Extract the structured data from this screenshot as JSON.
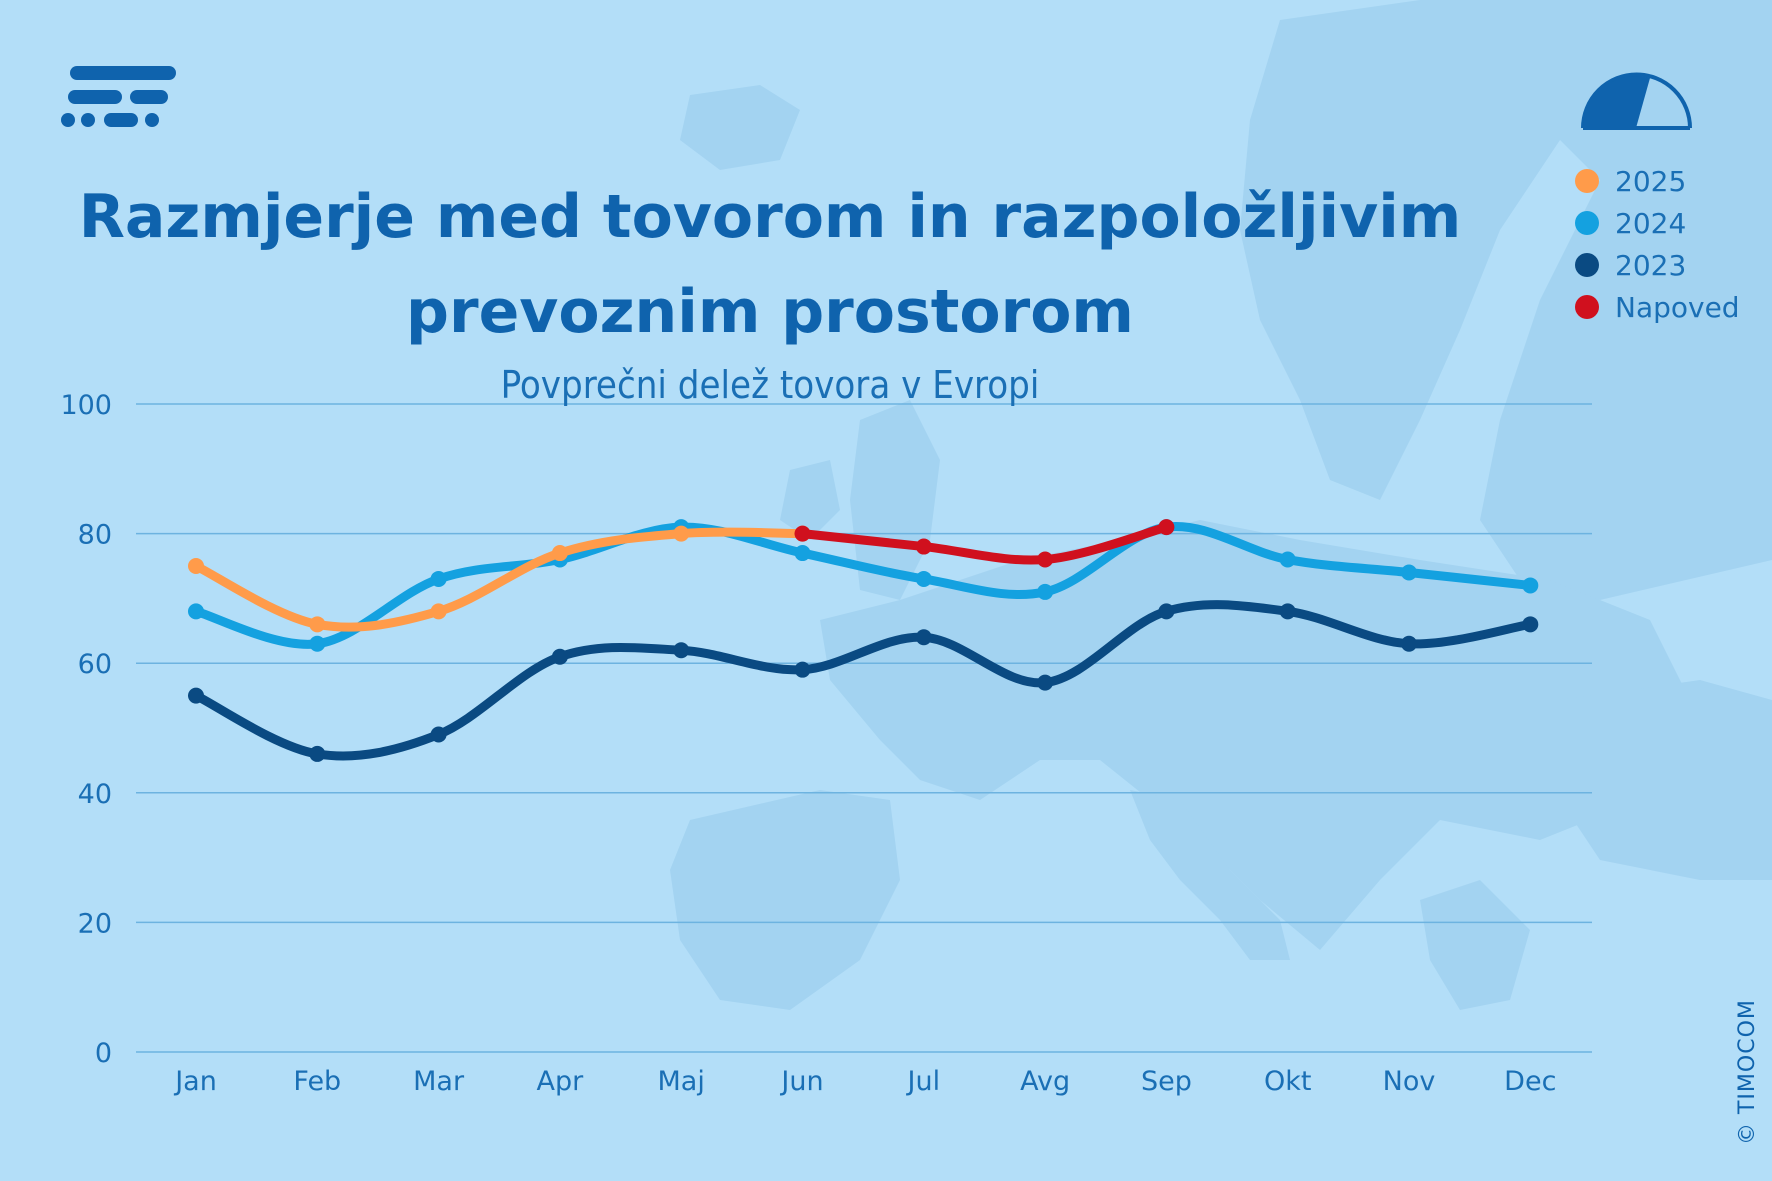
{
  "brand": {
    "copyright": "© TIMOCOM"
  },
  "header": {
    "title_line1": "Razmjerje med tovorom in razpoložljivim",
    "title_line2": "prevoznim prostorom",
    "subtitle": "Povprečni delež tovora v Evropi"
  },
  "icons": {
    "logo": "timocom-logo-icon",
    "gauge": "gauge-icon"
  },
  "colors": {
    "background": "#b3def8",
    "map": "#9fd0f0",
    "grid": "#6db3e0",
    "text": "#1a6fb5",
    "title": "#0f63ad",
    "s2025": "#ff9b4a",
    "s2024": "#14a1e0",
    "s2023": "#0a4a82",
    "forecast": "#d0101e"
  },
  "legend": [
    {
      "label": "2025",
      "color": "#ff9b4a"
    },
    {
      "label": "2024",
      "color": "#14a1e0"
    },
    {
      "label": "2023",
      "color": "#0a4a82"
    },
    {
      "label": "Napoved",
      "color": "#d0101e"
    }
  ],
  "chart_data": {
    "type": "line",
    "title": "Razmjerje med tovorom in razpoložljivim prevoznim prostorom",
    "subtitle": "Povprečni delež tovora v Evropi",
    "xlabel": "",
    "ylabel": "",
    "categories": [
      "Jan",
      "Feb",
      "Mar",
      "Apr",
      "Maj",
      "Jun",
      "Jul",
      "Avg",
      "Sep",
      "Okt",
      "Nov",
      "Dec"
    ],
    "ylim": [
      0,
      100
    ],
    "yticks": [
      0,
      20,
      40,
      60,
      80,
      100
    ],
    "grid": true,
    "legend_position": "top-right",
    "series": [
      {
        "name": "2023",
        "color": "#0a4a82",
        "values": [
          55,
          46,
          49,
          61,
          62,
          59,
          64,
          57,
          68,
          68,
          63,
          66
        ]
      },
      {
        "name": "2024",
        "color": "#14a1e0",
        "values": [
          68,
          63,
          73,
          76,
          81,
          77,
          73,
          71,
          81,
          76,
          74,
          72
        ]
      },
      {
        "name": "2025",
        "color": "#ff9b4a",
        "values": [
          75,
          66,
          68,
          77,
          80,
          80,
          null,
          null,
          null,
          null,
          null,
          null
        ]
      },
      {
        "name": "Napoved",
        "color": "#d0101e",
        "values": [
          null,
          null,
          null,
          null,
          null,
          80,
          78,
          76,
          81,
          null,
          null,
          null
        ]
      }
    ]
  }
}
